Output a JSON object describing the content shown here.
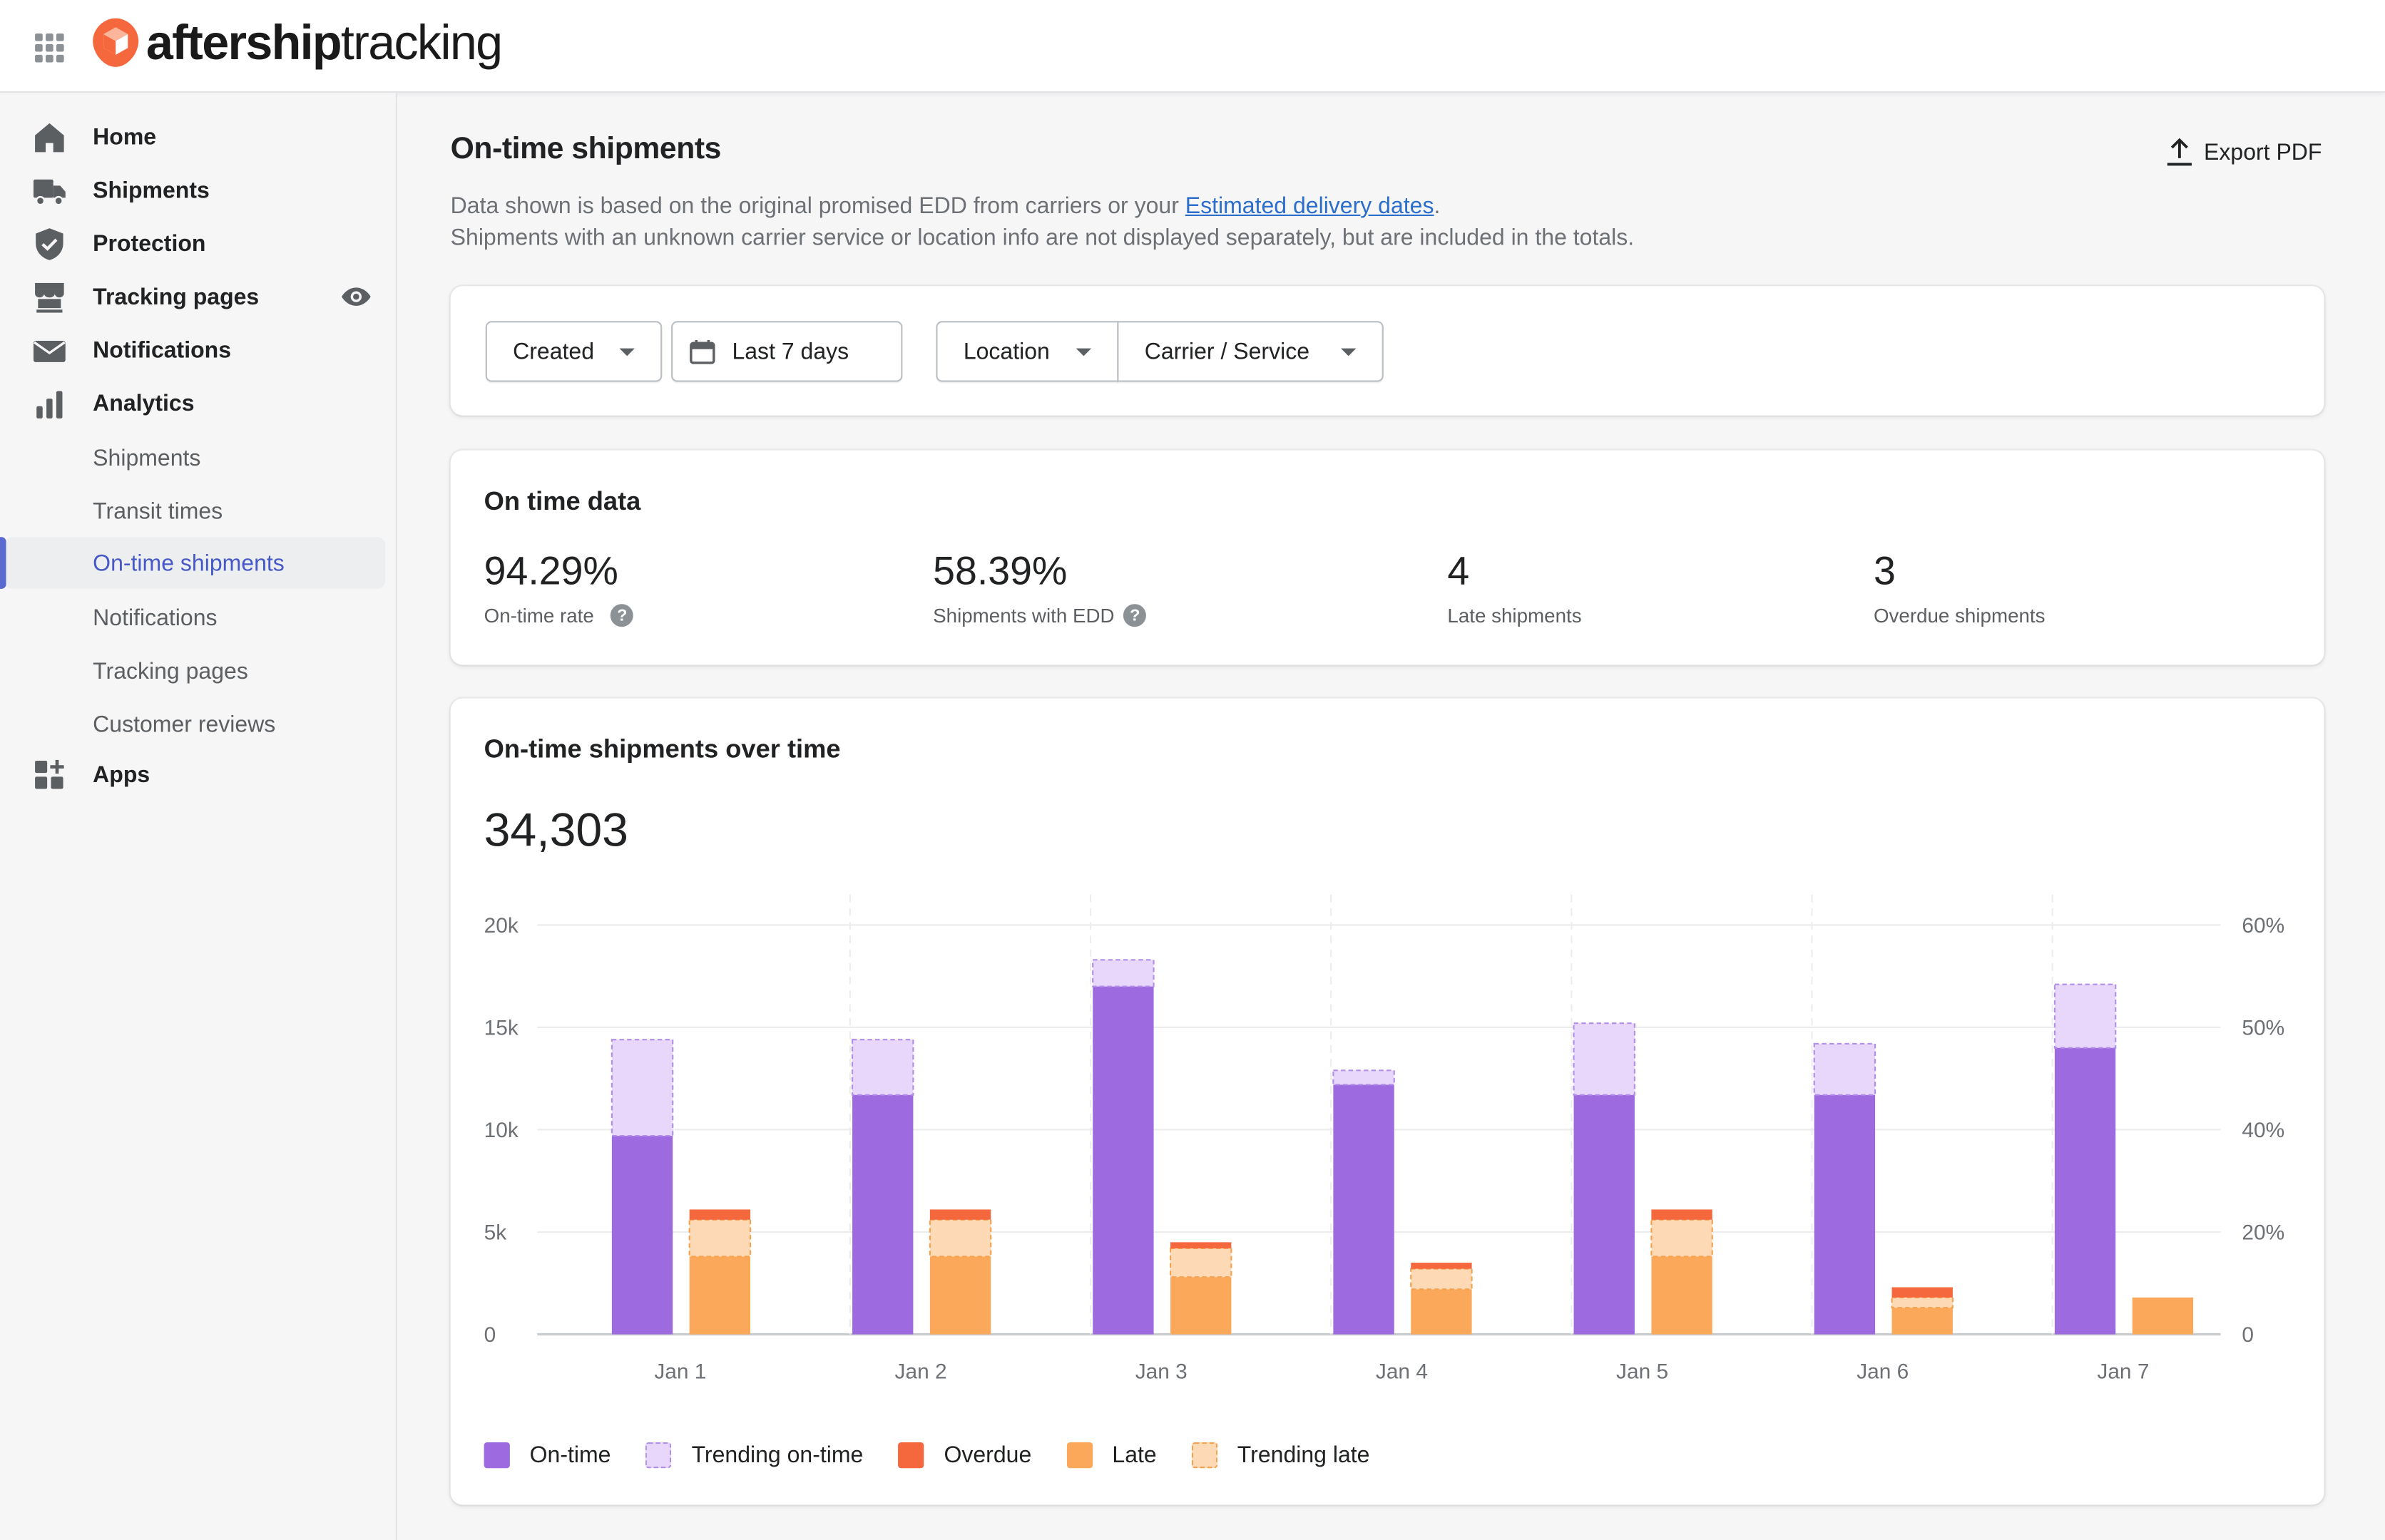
{
  "brand": {
    "bold": "aftership",
    "light": "tracking"
  },
  "sidebar": {
    "main_items": [
      {
        "label": "Home",
        "icon": "home-icon"
      },
      {
        "label": "Shipments",
        "icon": "truck-icon"
      },
      {
        "label": "Protection",
        "icon": "shield-check-icon"
      },
      {
        "label": "Tracking pages",
        "icon": "storefront-icon"
      },
      {
        "label": "Notifications",
        "icon": "envelope-icon"
      },
      {
        "label": "Analytics",
        "icon": "bar-chart-icon"
      }
    ],
    "analytics_sub": [
      {
        "label": "Shipments"
      },
      {
        "label": "Transit times"
      },
      {
        "label": "On-time shipments"
      },
      {
        "label": "Notifications"
      },
      {
        "label": "Tracking pages"
      },
      {
        "label": "Customer reviews"
      }
    ],
    "apps": {
      "label": "Apps",
      "icon": "apps-add-icon"
    },
    "active": "On-time shipments"
  },
  "page": {
    "title": "On-time shipments",
    "export_label": "Export PDF",
    "desc_line1_prefix": "Data shown is based on the original promised EDD from carriers or your ",
    "desc_link": "Estimated delivery dates",
    "desc_line1_suffix": ".",
    "desc_line2": "Shipments with an unknown carrier service or location info are not displayed separately, but are included in the totals."
  },
  "filters": {
    "created": "Created",
    "date_range": "Last 7 days",
    "location": "Location",
    "carrier": "Carrier / Service"
  },
  "on_time_data": {
    "title": "On time data",
    "metrics": [
      {
        "value": "94.29%",
        "label": "On-time rate",
        "help": true
      },
      {
        "value": "58.39%",
        "label": "Shipments with EDD",
        "help": true
      },
      {
        "value": "4",
        "label": "Late shipments",
        "help": false
      },
      {
        "value": "3",
        "label": "Overdue shipments",
        "help": false
      }
    ]
  },
  "over_time": {
    "title": "On-time shipments over time",
    "total": "34,303"
  },
  "chart_data": {
    "type": "bar",
    "stacked": true,
    "grouped": true,
    "categories": [
      "Jan 1",
      "Jan 2",
      "Jan 3",
      "Jan 4",
      "Jan 5",
      "Jan 6",
      "Jan 7"
    ],
    "y_left": {
      "ticks": [
        "0",
        "5k",
        "10k",
        "15k",
        "20k"
      ],
      "range": [
        0,
        20000
      ]
    },
    "y_right": {
      "ticks": [
        "0",
        "20%",
        "40%",
        "50%",
        "60%"
      ]
    },
    "groups": [
      {
        "name": "on-time-group",
        "series": [
          {
            "name": "On-time",
            "values": [
              9700,
              11700,
              17000,
              12200,
              11700,
              11700,
              14000
            ]
          },
          {
            "name": "Trending on-time",
            "values": [
              4700,
              2700,
              1300,
              700,
              3500,
              2500,
              3100
            ]
          }
        ]
      },
      {
        "name": "late-group",
        "series": [
          {
            "name": "Late",
            "values": [
              3800,
              3800,
              2800,
              2200,
              3800,
              1300,
              1800
            ]
          },
          {
            "name": "Trending late",
            "values": [
              1800,
              1800,
              1400,
              1000,
              1800,
              500,
              0
            ]
          },
          {
            "name": "Overdue",
            "values": [
              500,
              500,
              300,
              300,
              500,
              500,
              0
            ]
          }
        ]
      }
    ],
    "colors": {
      "On-time": "#9e6ae0",
      "Trending on-time": "#e8d7fb",
      "Overdue": "#f5683e",
      "Late": "#fba85a",
      "Trending late": "#fdd9b5"
    },
    "legend": [
      {
        "name": "On-time",
        "style": "solid"
      },
      {
        "name": "Trending on-time",
        "style": "dashed"
      },
      {
        "name": "Overdue",
        "style": "solid"
      },
      {
        "name": "Late",
        "style": "solid"
      },
      {
        "name": "Trending late",
        "style": "dashed"
      }
    ],
    "legend_position": "bottom-left",
    "grid": true
  }
}
